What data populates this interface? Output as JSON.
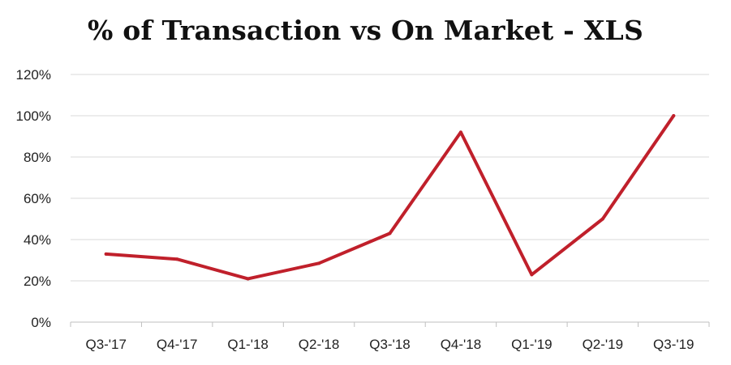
{
  "chart_data": {
    "type": "line",
    "title": "% of Transaction vs On Market - XLS",
    "xlabel": "",
    "ylabel": "",
    "categories": [
      "Q3-'17",
      "Q4-'17",
      "Q1-'18",
      "Q2-'18",
      "Q3-'18",
      "Q4-'18",
      "Q1-'19",
      "Q2-'19",
      "Q3-'19"
    ],
    "series": [
      {
        "values": [
          33,
          30.5,
          21,
          28.5,
          43,
          92,
          23,
          50,
          100
        ],
        "color": "#c0202b"
      }
    ],
    "ylim": [
      0,
      120
    ],
    "yticks": [
      0,
      20,
      40,
      60,
      80,
      100,
      120
    ],
    "ytick_labels": [
      "0%",
      "20%",
      "40%",
      "60%",
      "80%",
      "100%",
      "120%"
    ],
    "grid": true,
    "legend": "none",
    "grid_color": "#d9d9d9"
  }
}
